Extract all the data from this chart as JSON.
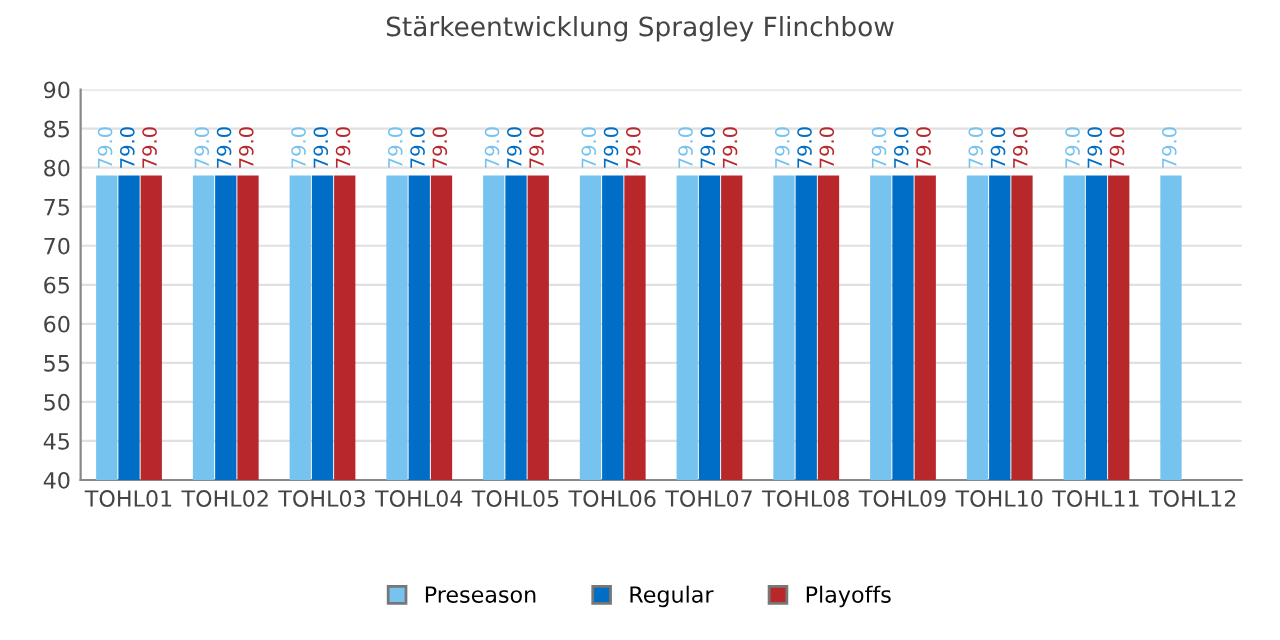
{
  "chart_data": {
    "type": "bar",
    "title": "Stärkeentwicklung Spragley Flinchbow",
    "categories": [
      "TOHL01",
      "TOHL02",
      "TOHL03",
      "TOHL04",
      "TOHL05",
      "TOHL06",
      "TOHL07",
      "TOHL08",
      "TOHL09",
      "TOHL10",
      "TOHL11",
      "TOHL12"
    ],
    "series": [
      {
        "name": "Preseason",
        "color": "#76c3ef",
        "values": [
          79,
          79,
          79,
          79,
          79,
          79,
          79,
          79,
          79,
          79,
          79,
          79
        ],
        "value_labels": [
          "79.0",
          "79.0",
          "79.0",
          "79.0",
          "79.0",
          "79.0",
          "79.0",
          "79.0",
          "79.0",
          "79.0",
          "79.0",
          "79.0"
        ]
      },
      {
        "name": "Regular",
        "color": "#006ec6",
        "values": [
          79,
          79,
          79,
          79,
          79,
          79,
          79,
          79,
          79,
          79,
          79,
          null
        ],
        "value_labels": [
          "79.0",
          "79.0",
          "79.0",
          "79.0",
          "79.0",
          "79.0",
          "79.0",
          "79.0",
          "79.0",
          "79.0",
          "79.0",
          null
        ]
      },
      {
        "name": "Playoffs",
        "color": "#b8282b",
        "values": [
          79,
          79,
          79,
          79,
          79,
          79,
          79,
          79,
          79,
          79,
          79,
          null
        ],
        "value_labels": [
          "79.0",
          "79.0",
          "79.0",
          "79.0",
          "79.0",
          "79.0",
          "79.0",
          "79.0",
          "79.0",
          "79.0",
          "79.0",
          null
        ]
      }
    ],
    "ylim": [
      40,
      90
    ],
    "yticks": [
      40,
      45,
      50,
      55,
      60,
      65,
      70,
      75,
      80,
      85,
      90
    ],
    "grid": "y",
    "legend": "bottom"
  }
}
